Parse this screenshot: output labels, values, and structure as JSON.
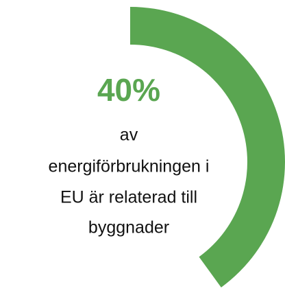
{
  "chart_data": {
    "type": "donut",
    "values": [
      40
    ],
    "value_labels": [
      "40%"
    ],
    "color": "#5aa651",
    "text_lines": [
      "av",
      "energiförbrukningen i",
      "EU är relaterad till",
      "byggnader"
    ]
  }
}
